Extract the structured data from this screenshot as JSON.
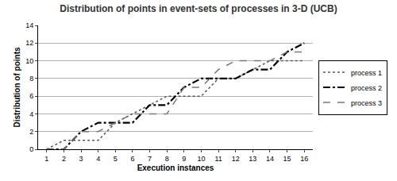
{
  "chart_data": {
    "type": "line",
    "title": "Distribution of points in event-sets of processes in 3-D (UCB)",
    "x_label": "Execution instances",
    "y_label": "Distribution of points",
    "categories": [
      "1",
      "2",
      "3",
      "4",
      "5",
      "6",
      "7",
      "8",
      "9",
      "10",
      "11",
      "12",
      "13",
      "14",
      "15",
      "16"
    ],
    "series": [
      {
        "name": "process 1",
        "color": "#555555",
        "line_style": "dot",
        "values": [
          0,
          1,
          1,
          1,
          3,
          4,
          5,
          6,
          6,
          6,
          8,
          8,
          9,
          10,
          10,
          10
        ]
      },
      {
        "name": "process 2",
        "color": "#000000",
        "line_style": "dashdot",
        "values": [
          0,
          0,
          2,
          3,
          3,
          3,
          5,
          5,
          7,
          8,
          8,
          8,
          9,
          9,
          11,
          12
        ]
      },
      {
        "name": "process 3",
        "color": "#777777",
        "line_style": "dash",
        "values": [
          0,
          0,
          2,
          2,
          3,
          4,
          4,
          4,
          7,
          7,
          9,
          10,
          10,
          10,
          11,
          11
        ]
      }
    ],
    "ylim": [
      0,
      14
    ],
    "yticks": [
      0,
      2,
      4,
      6,
      8,
      10,
      12,
      14
    ],
    "grid": true,
    "legend": "right"
  }
}
